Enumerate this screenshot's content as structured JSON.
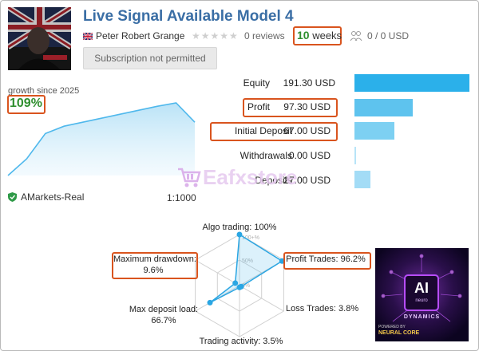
{
  "header": {
    "title": "Live Signal Available Model 4",
    "author": "Peter Robert Grange",
    "reviews": "0 reviews",
    "weeks_num": "10",
    "weeks_unit": "weeks",
    "subscribers": "0 / 0 USD",
    "subscribe_button": "Subscription not permitted"
  },
  "growth": {
    "label": "growth since 2025",
    "value": "109%",
    "chart_data": {
      "type": "area",
      "x": [
        0,
        1,
        2,
        3,
        4,
        5,
        6,
        7,
        8,
        9,
        10
      ],
      "values": [
        0,
        25,
        63,
        74,
        80,
        86,
        92,
        98,
        104,
        109,
        80
      ],
      "title": "",
      "xlabel": "",
      "ylabel": ""
    }
  },
  "account": {
    "broker": "AMarkets-Real",
    "leverage": "1:1000"
  },
  "stats": [
    {
      "label": "Equity",
      "value": "191.30 USD",
      "amount": 191.3,
      "color": "#2bb0ea"
    },
    {
      "label": "Profit",
      "value": "97.30 USD",
      "amount": 97.3,
      "color": "#5ec3ee"
    },
    {
      "label": "Initial Deposit",
      "value": "67.00 USD",
      "amount": 67.0,
      "color": "#7dd0f2"
    },
    {
      "label": "Withdrawals",
      "value": "0.00 USD",
      "amount": 0.0,
      "color": "#b8e4f8"
    },
    {
      "label": "Deposits",
      "value": "27.00 USD",
      "amount": 27.0,
      "color": "#a3dcf6"
    }
  ],
  "watermark": {
    "text": "Eafxstore"
  },
  "radar": {
    "labels": {
      "algo": "Algo trading: 100%",
      "profit": "Profit Trades: 96.2%",
      "loss": "Loss Trades: 3.8%",
      "activity": "Trading activity: 3.5%",
      "load_title": "Max deposit load:",
      "load_value": "66.7%",
      "dd_title": "Maximum drawdown:",
      "dd_value": "9.6%"
    },
    "ticks": [
      "100+%",
      "50%",
      "0%"
    ],
    "chart_data": {
      "type": "radar",
      "axes": [
        "Algo trading",
        "Profit Trades",
        "Loss Trades",
        "Trading activity",
        "Max deposit load",
        "Maximum drawdown"
      ],
      "values": [
        100,
        96.2,
        3.8,
        3.5,
        66.7,
        9.6
      ],
      "range": [
        0,
        100
      ]
    }
  },
  "ad": {
    "logo": "AI",
    "sub": "neuro",
    "tag": "DYNAMICS",
    "powered": "POWERED BY",
    "brand": "NEURAL CORE"
  },
  "colors": {
    "accent": "#3a6ea5",
    "highlight": "#d9541e",
    "positive": "#2f8f2f",
    "chart": "#4fb8ec"
  }
}
